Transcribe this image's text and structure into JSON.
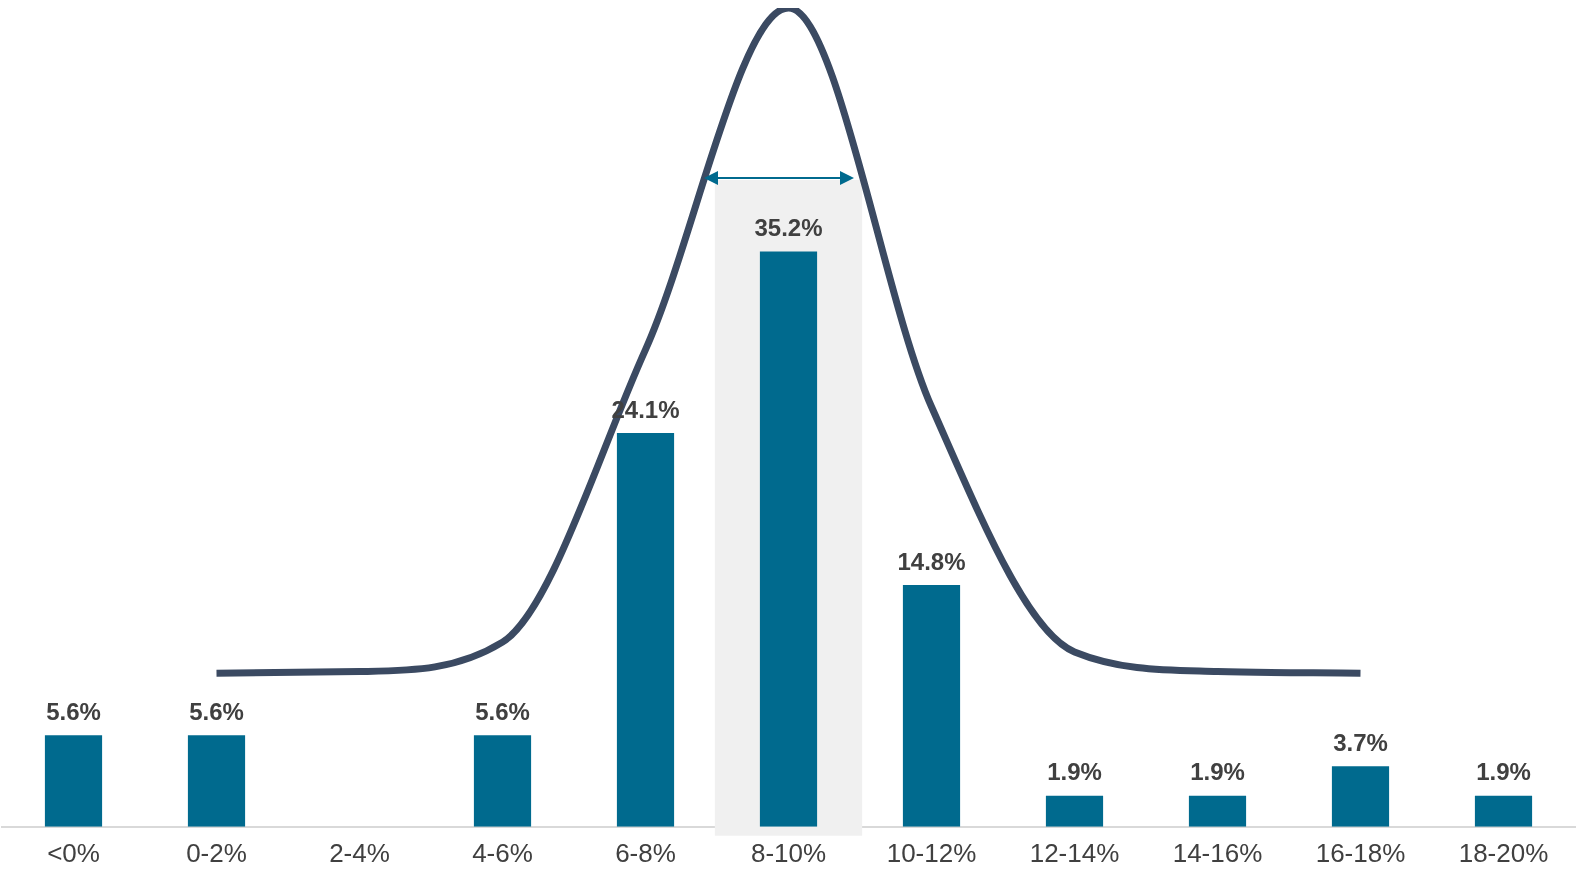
{
  "chart_data": {
    "type": "bar",
    "categories": [
      "<0%",
      "0-2%",
      "2-4%",
      "4-6%",
      "6-8%",
      "8-10%",
      "10-12%",
      "12-14%",
      "14-16%",
      "16-18%",
      "18-20%"
    ],
    "series": [
      {
        "color": "#006a8e",
        "values": [
          5.6,
          5.6,
          null,
          5.6,
          24.1,
          35.2,
          14.8,
          1.9,
          1.9,
          3.7,
          1.9
        ],
        "value_labels": [
          "5.6%",
          "5.6%",
          null,
          "5.6%",
          "24.1%",
          "35.2%",
          "14.8%",
          "1.9%",
          "1.9%",
          "3.7%",
          "1.9%"
        ]
      },
      {
        "type": "line",
        "color": "#3b4a62",
        "values": [
          null,
          9.4,
          9.5,
          11.3,
          29.2,
          50.1,
          25.7,
          10.7,
          9.5,
          9.4,
          null
        ]
      }
    ],
    "tick_labels": "x",
    "marker": "none",
    "bands": [
      {
        "axis": "x",
        "from": "8-10%",
        "to": "8-10%",
        "color": "#f0f0f0"
      }
    ]
  }
}
